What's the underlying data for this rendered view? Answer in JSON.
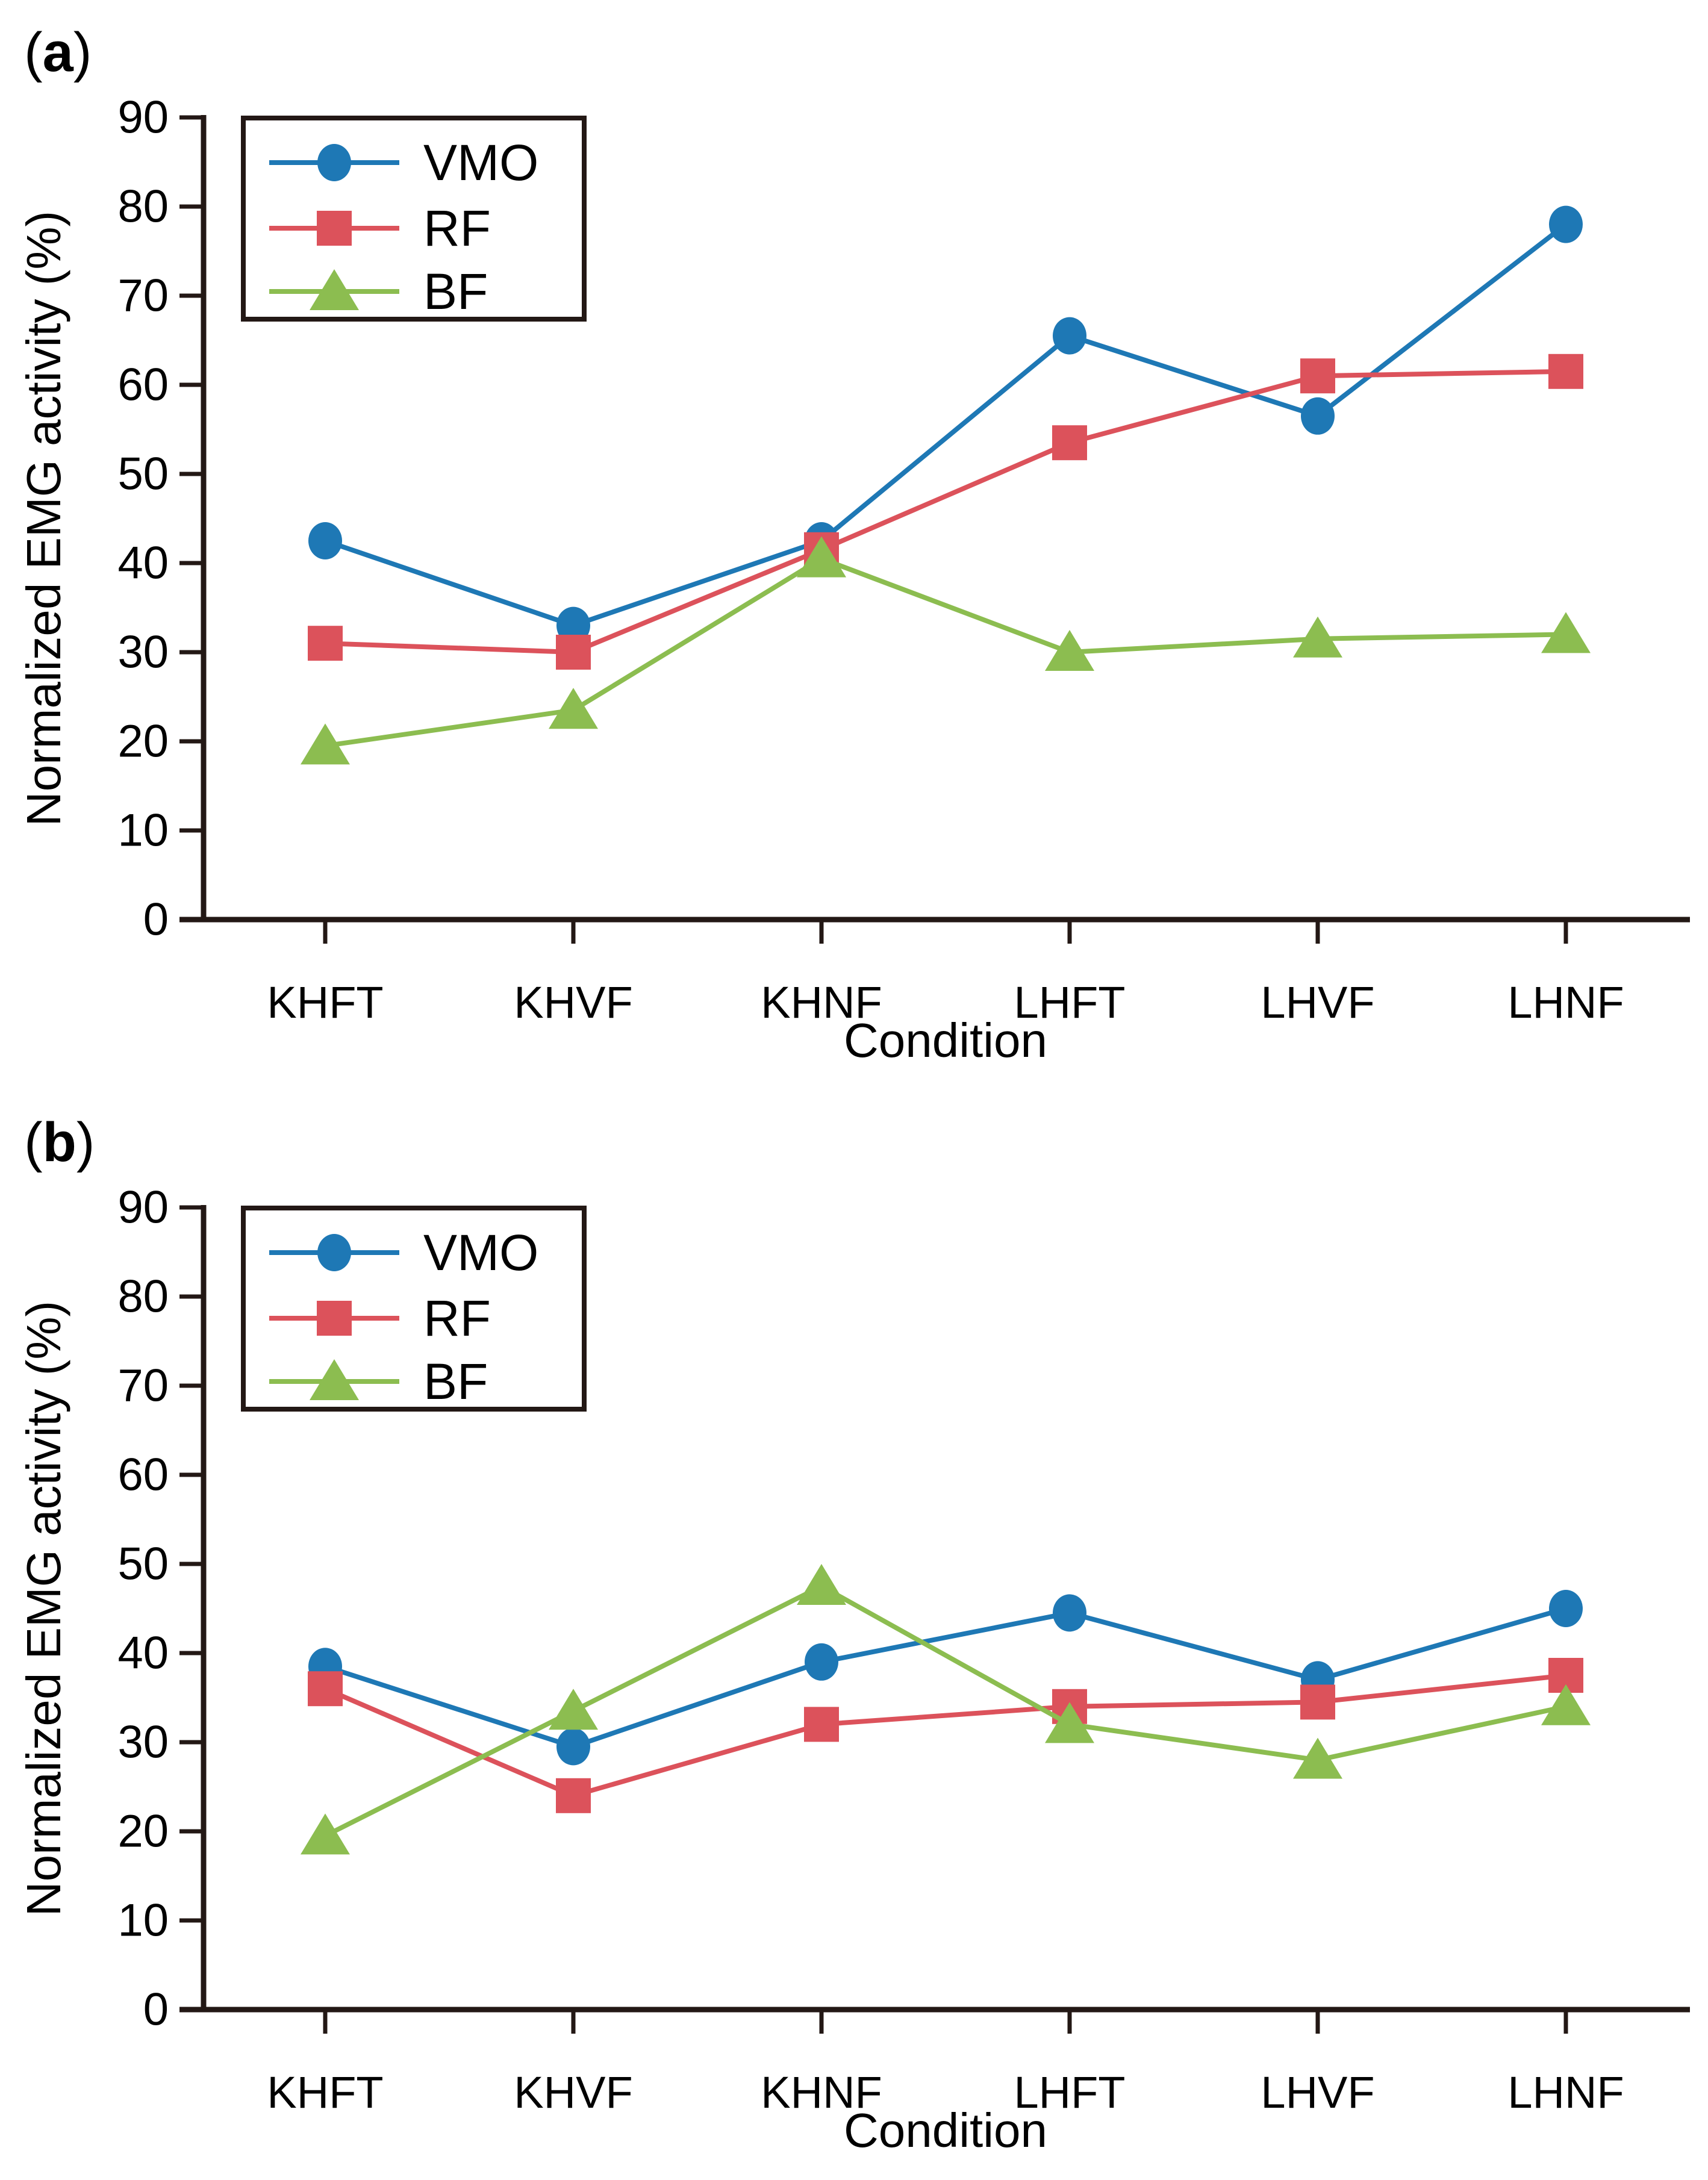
{
  "figure": {
    "background": "#ffffff",
    "axis_color": "#231815",
    "text_color": "#000000"
  },
  "chart_data": [
    {
      "type": "line",
      "panel_label_prefix": "(",
      "panel_label_letter": "a",
      "panel_label_suffix": ")",
      "title": "",
      "xlabel": "Condition",
      "ylabel": "Normalized EMG activity (%)",
      "ylim": [
        0,
        90
      ],
      "ytick_step": 10,
      "ytick_labels": [
        "0",
        "10",
        "20",
        "30",
        "40",
        "50",
        "60",
        "70",
        "80",
        "90"
      ],
      "grid": false,
      "legend_position": "top-left",
      "categories": [
        "KHFT",
        "KHVF",
        "KHNF",
        "LHFT",
        "LHVF",
        "LHNF"
      ],
      "series": [
        {
          "name": "VMO",
          "marker": "circle",
          "color": "#1e78b5",
          "values": [
            42.5,
            33,
            42.5,
            65.5,
            56.5,
            78
          ]
        },
        {
          "name": "RF",
          "marker": "square",
          "color": "#dc525b",
          "values": [
            31,
            30,
            41.5,
            53.5,
            61,
            61.5
          ]
        },
        {
          "name": "BF",
          "marker": "triangle",
          "color": "#8cbd50",
          "values": [
            19.5,
            23.5,
            40.5,
            30,
            31.5,
            32
          ]
        }
      ]
    },
    {
      "type": "line",
      "panel_label_prefix": "(",
      "panel_label_letter": "b",
      "panel_label_suffix": ")",
      "title": "",
      "xlabel": "Condition",
      "ylabel": "Normalized EMG activity (%)",
      "ylim": [
        0,
        90
      ],
      "ytick_step": 10,
      "ytick_labels": [
        "0",
        "10",
        "20",
        "30",
        "40",
        "50",
        "60",
        "70",
        "80",
        "90"
      ],
      "grid": false,
      "legend_position": "top-left",
      "categories": [
        "KHFT",
        "KHVF",
        "KHNF",
        "LHFT",
        "LHVF",
        "LHNF"
      ],
      "series": [
        {
          "name": "VMO",
          "marker": "circle",
          "color": "#1e78b5",
          "values": [
            38.5,
            29.5,
            39,
            44.5,
            37,
            45
          ]
        },
        {
          "name": "RF",
          "marker": "square",
          "color": "#dc525b",
          "values": [
            36,
            24,
            32,
            34,
            34.5,
            37.5
          ]
        },
        {
          "name": "BF",
          "marker": "triangle",
          "color": "#8cbd50",
          "values": [
            19.5,
            33.5,
            47.5,
            32,
            28,
            34
          ]
        }
      ]
    }
  ]
}
